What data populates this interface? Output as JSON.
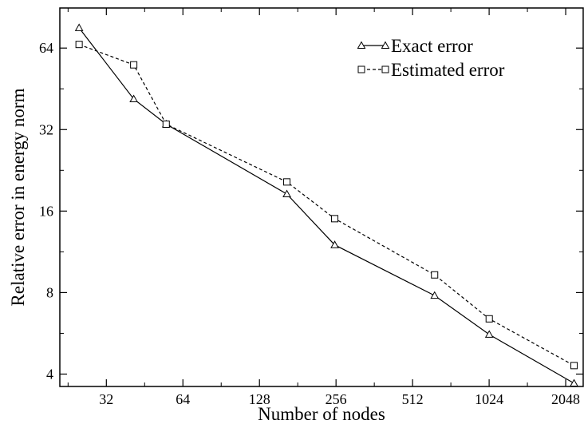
{
  "chart_data": {
    "type": "line",
    "xlabel": "Number of nodes",
    "ylabel": "Relative error in energy norm",
    "xscale": "log2",
    "yscale": "log2",
    "xlim": [
      21,
      2400
    ],
    "ylim": [
      3.6,
      90
    ],
    "xticks": [
      32,
      64,
      128,
      256,
      512,
      1024,
      2048
    ],
    "yticks": [
      4,
      8,
      16,
      32,
      64
    ],
    "grid": false,
    "legend_position": "top-right",
    "series": [
      {
        "name": "Exact error",
        "marker": "triangle",
        "line_style": "solid",
        "color": "#000000",
        "x": [
          25,
          41,
          55,
          164,
          253,
          625,
          1025,
          2209
        ],
        "y": [
          76,
          41.5,
          33.5,
          18.5,
          12,
          7.8,
          5.6,
          3.7
        ]
      },
      {
        "name": "Estimated error",
        "marker": "square",
        "line_style": "dashed",
        "color": "#000000",
        "x": [
          25,
          41,
          55,
          164,
          253,
          625,
          1025,
          2209
        ],
        "y": [
          66,
          55.5,
          33.5,
          20.5,
          15,
          9.3,
          6.4,
          4.3
        ]
      }
    ]
  }
}
